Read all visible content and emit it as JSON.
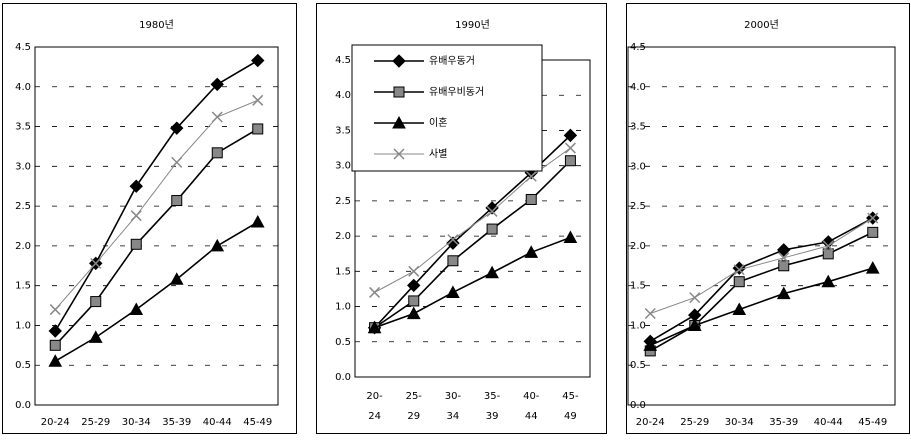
{
  "chart_data": [
    {
      "type": "line",
      "title": "1980년",
      "categories": [
        "20-24",
        "25-29",
        "30-34",
        "35-39",
        "40-44",
        "45-49"
      ],
      "ylim": [
        0,
        4.5
      ],
      "yticks": [
        {
          "value": 0,
          "label": "0.0"
        },
        0.5,
        {
          "value": 1,
          "label": "1.0"
        },
        1.5,
        {
          "value": 2,
          "label": "2.0"
        },
        2.5,
        {
          "value": 3,
          "label": "3.0"
        },
        3.5,
        {
          "value": 4,
          "label": "4.0"
        },
        4.5
      ],
      "grid": true,
      "series": [
        {
          "color": "#000000",
          "marker": "diamond",
          "values": [
            0.93,
            1.78,
            2.75,
            3.48,
            4.03,
            4.33
          ]
        },
        {
          "color": "#000000",
          "marker": "square",
          "values": [
            0.75,
            1.3,
            2.02,
            2.57,
            3.17,
            3.47
          ]
        },
        {
          "color": "#000000",
          "marker": "triangle",
          "values": [
            0.55,
            0.85,
            1.2,
            1.58,
            2.0,
            2.3
          ]
        },
        {
          "color": "#888888",
          "marker": "x",
          "values": [
            1.2,
            1.78,
            2.38,
            3.05,
            3.62,
            3.83
          ]
        }
      ]
    },
    {
      "type": "line",
      "title": "1990년",
      "categories": [
        [
          "20-",
          "24"
        ],
        [
          "25-",
          "29"
        ],
        [
          "30-",
          "34"
        ],
        [
          "35-",
          "39"
        ],
        [
          "40-",
          "44"
        ],
        [
          "45-",
          "49"
        ]
      ],
      "ylim": [
        0,
        4.5
      ],
      "yticks": [
        {
          "value": 0,
          "label": "0.0"
        },
        0.5,
        {
          "value": 1,
          "label": "1.0"
        },
        1.5,
        {
          "value": 2,
          "label": "2.0"
        },
        2.5,
        {
          "value": 3,
          "label": "3.0"
        },
        3.5,
        {
          "value": 4,
          "label": "4.0"
        },
        4.5
      ],
      "grid": true,
      "legend": "upper left",
      "series": [
        {
          "name": "유배우동거",
          "color": "#000000",
          "marker": "diamond",
          "values": [
            0.7,
            1.3,
            1.9,
            2.4,
            2.9,
            3.43
          ]
        },
        {
          "name": "유배우비동거",
          "color": "#000000",
          "marker": "square",
          "values": [
            0.7,
            1.08,
            1.65,
            2.1,
            2.52,
            3.07
          ]
        },
        {
          "name": "이혼",
          "color": "#000000",
          "marker": "triangle",
          "values": [
            0.7,
            0.9,
            1.2,
            1.48,
            1.77,
            1.98
          ]
        },
        {
          "name": "사별",
          "color": "#888888",
          "marker": "x",
          "values": [
            1.2,
            1.5,
            1.95,
            2.35,
            2.85,
            3.25
          ]
        }
      ]
    },
    {
      "type": "line",
      "title": "2000년",
      "categories": [
        "20-24",
        "25-29",
        "30-34",
        "35-39",
        "40-44",
        "45-49"
      ],
      "ylim": [
        0,
        4.5
      ],
      "yticks": [
        {
          "value": 0,
          "label": "0.0"
        },
        0.5,
        {
          "value": 1,
          "label": "1.0"
        },
        1.5,
        {
          "value": 2,
          "label": "2.0"
        },
        2.5,
        {
          "value": 3,
          "label": "3.0"
        },
        3.5,
        {
          "value": 4,
          "label": "4.0"
        },
        4.5
      ],
      "grid": true,
      "series": [
        {
          "color": "#000000",
          "marker": "diamond",
          "values": [
            0.8,
            1.13,
            1.72,
            1.95,
            2.05,
            2.35
          ]
        },
        {
          "color": "#000000",
          "marker": "square",
          "values": [
            0.68,
            1.0,
            1.55,
            1.75,
            1.9,
            2.17
          ]
        },
        {
          "color": "#000000",
          "marker": "triangle",
          "values": [
            0.75,
            1.0,
            1.2,
            1.4,
            1.55,
            1.72
          ]
        },
        {
          "color": "#888888",
          "marker": "x",
          "values": [
            1.15,
            1.35,
            1.7,
            1.85,
            2.0,
            2.35
          ]
        }
      ]
    }
  ]
}
